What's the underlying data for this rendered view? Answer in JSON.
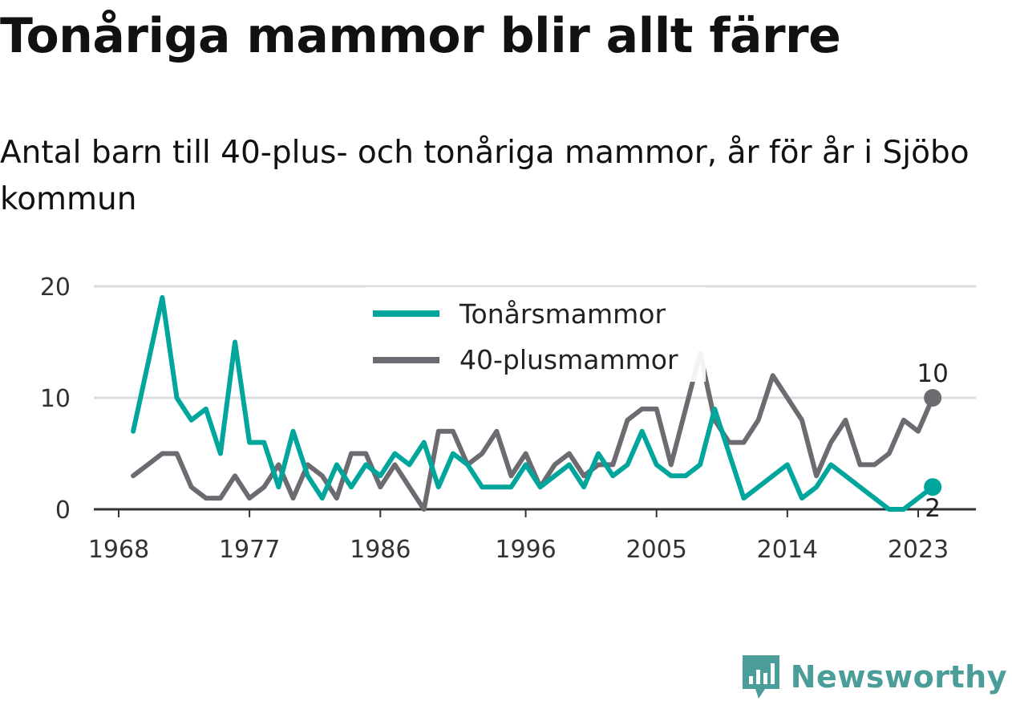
{
  "chart_data": {
    "type": "line",
    "title": "Tonåriga mammor blir allt färre",
    "subtitle": "Antal barn till 40-plus- och tonåriga mammor, år för år i Sjöbo kommun",
    "x_tick_labels": [
      "1968",
      "1977",
      "1986",
      "1996",
      "2005",
      "2014",
      "2023"
    ],
    "y_tick_labels": [
      "0",
      "10",
      "20"
    ],
    "ylim": [
      0,
      20
    ],
    "xlim": [
      1967.3,
      2027.5
    ],
    "grid": true,
    "legend_position": "top-center",
    "x": [
      1969,
      1970,
      1971,
      1972,
      1973,
      1974,
      1975,
      1976,
      1977,
      1978,
      1979,
      1980,
      1981,
      1982,
      1983,
      1984,
      1985,
      1986,
      1987,
      1988,
      1989,
      1990,
      1991,
      1992,
      1993,
      1994,
      1995,
      1996,
      1997,
      1998,
      1999,
      2000,
      2001,
      2002,
      2003,
      2004,
      2005,
      2006,
      2007,
      2008,
      2009,
      2010,
      2011,
      2012,
      2013,
      2014,
      2015,
      2016,
      2017,
      2018,
      2019,
      2020,
      2021,
      2022,
      2023,
      2024
    ],
    "series": [
      {
        "name": "Tonårsmammor",
        "color": "#00a69c",
        "values": [
          7,
          13,
          19,
          10,
          8,
          9,
          5,
          15,
          6,
          6,
          2,
          7,
          3,
          1,
          4,
          2,
          4,
          3,
          5,
          4,
          6,
          2,
          5,
          4,
          2,
          2,
          2,
          4,
          2,
          3,
          4,
          2,
          5,
          3,
          4,
          7,
          4,
          3,
          3,
          4,
          9,
          5,
          1,
          2,
          3,
          4,
          1,
          2,
          4,
          3,
          2,
          1,
          0,
          0,
          1,
          2
        ],
        "end_label": "2"
      },
      {
        "name": "40-plusmammor",
        "color": "#6d6b72",
        "values": [
          3,
          4,
          5,
          5,
          2,
          1,
          1,
          3,
          1,
          2,
          4,
          1,
          4,
          3,
          1,
          5,
          5,
          2,
          4,
          2,
          0,
          7,
          7,
          4,
          5,
          7,
          3,
          5,
          2,
          4,
          5,
          3,
          4,
          4,
          8,
          9,
          9,
          4,
          9,
          14,
          8,
          6,
          6,
          8,
          12,
          10,
          8,
          3,
          6,
          8,
          4,
          4,
          5,
          8,
          7,
          10
        ],
        "end_label": "10"
      }
    ]
  },
  "branding": {
    "name": "Newsworthy",
    "color": "#4a9d99"
  }
}
